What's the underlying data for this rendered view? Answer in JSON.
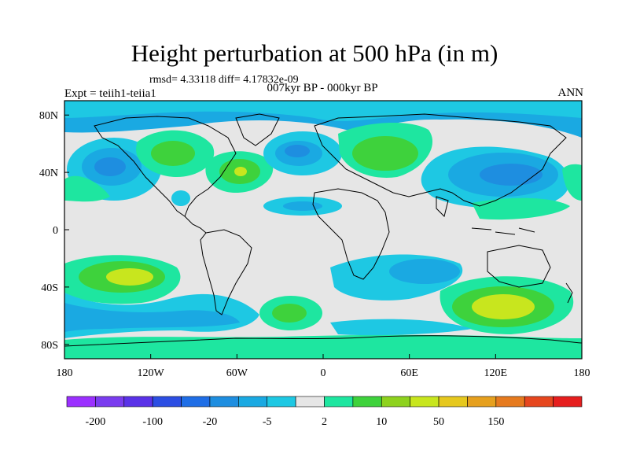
{
  "header": {
    "title": "Height perturbation at 500 hPa (in m)",
    "stats": "rmsd= 4.33118 diff= 4.17832e-09",
    "experiment": "Expt = teiih1-teiia1",
    "period": "007kyr BP - 000kyr BP",
    "season": "ANN"
  },
  "map": {
    "x_ticks": [
      "180",
      "120W",
      "60W",
      "0",
      "60E",
      "120E",
      "180"
    ],
    "y_ticks": [
      "80N",
      "40N",
      "0",
      "40S",
      "80S"
    ],
    "lon_values": [
      -180,
      -120,
      -60,
      0,
      60,
      120,
      180
    ],
    "lat_values": [
      80,
      40,
      0,
      -40,
      -80
    ]
  },
  "colorbar": {
    "labels": [
      "-200",
      "-100",
      "-20",
      "-5",
      "2",
      "10",
      "50",
      "150"
    ],
    "colors": [
      "#9b30ff",
      "#7a3cef",
      "#5a32e8",
      "#2c4ee3",
      "#1f6ee6",
      "#1e8ee0",
      "#1aa9e2",
      "#1ec8e3",
      "#e6e6e6",
      "#1ee6a0",
      "#3ed23c",
      "#8ed21e",
      "#c8e61e",
      "#e6c81e",
      "#e6a01e",
      "#e67a1e",
      "#e6461e",
      "#e61e1e"
    ]
  },
  "palette": {
    "land_outline": "#000000",
    "neutral": "#e6e6e6",
    "cyan": "#1ec8e3",
    "light_blue": "#1aa9e2",
    "mid_blue": "#1e8ee0",
    "blue": "#2c6ee3",
    "teal_green": "#1ee6a0",
    "green": "#3ed23c",
    "yellow_green": "#c8e61e"
  }
}
